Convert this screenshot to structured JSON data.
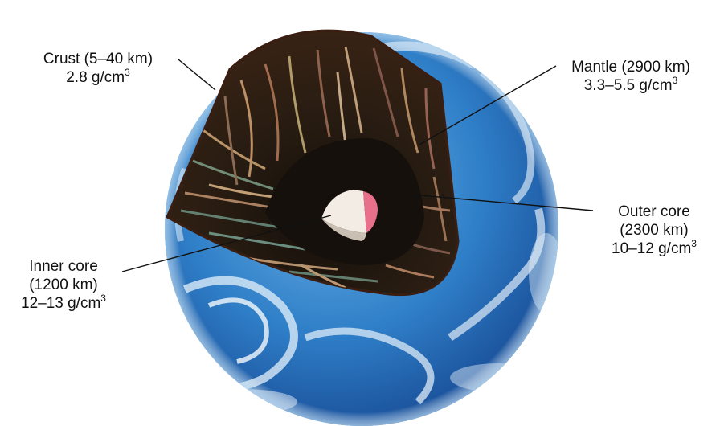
{
  "labels": {
    "crust": {
      "name": "Crust (5–40 km)",
      "density_prefix": "2.8 g/cm",
      "density_exp": "3"
    },
    "mantle": {
      "name": "Mantle (2900 km)",
      "density_prefix": "3.3–5.5 g/cm",
      "density_exp": "3"
    },
    "outer_core": {
      "name": "Outer core",
      "thickness": "(2300 km)",
      "density_prefix": "10–12 g/cm",
      "density_exp": "3"
    },
    "inner_core": {
      "name": "Inner core",
      "thickness": "(1200 km)",
      "density_prefix": "12–13 g/cm",
      "density_exp": "3"
    }
  },
  "colors": {
    "ocean": "#2f7fc8",
    "ocean_dark": "#1a4f99",
    "cloud": "#eaf3fb",
    "crust_edge": "#3a1e12",
    "mantle": "#2a1f14",
    "outer_core": "#1a1510",
    "inner_core": "#f3ece4",
    "inner_core_cut": "#e8708a",
    "leader_line": "#111111"
  }
}
